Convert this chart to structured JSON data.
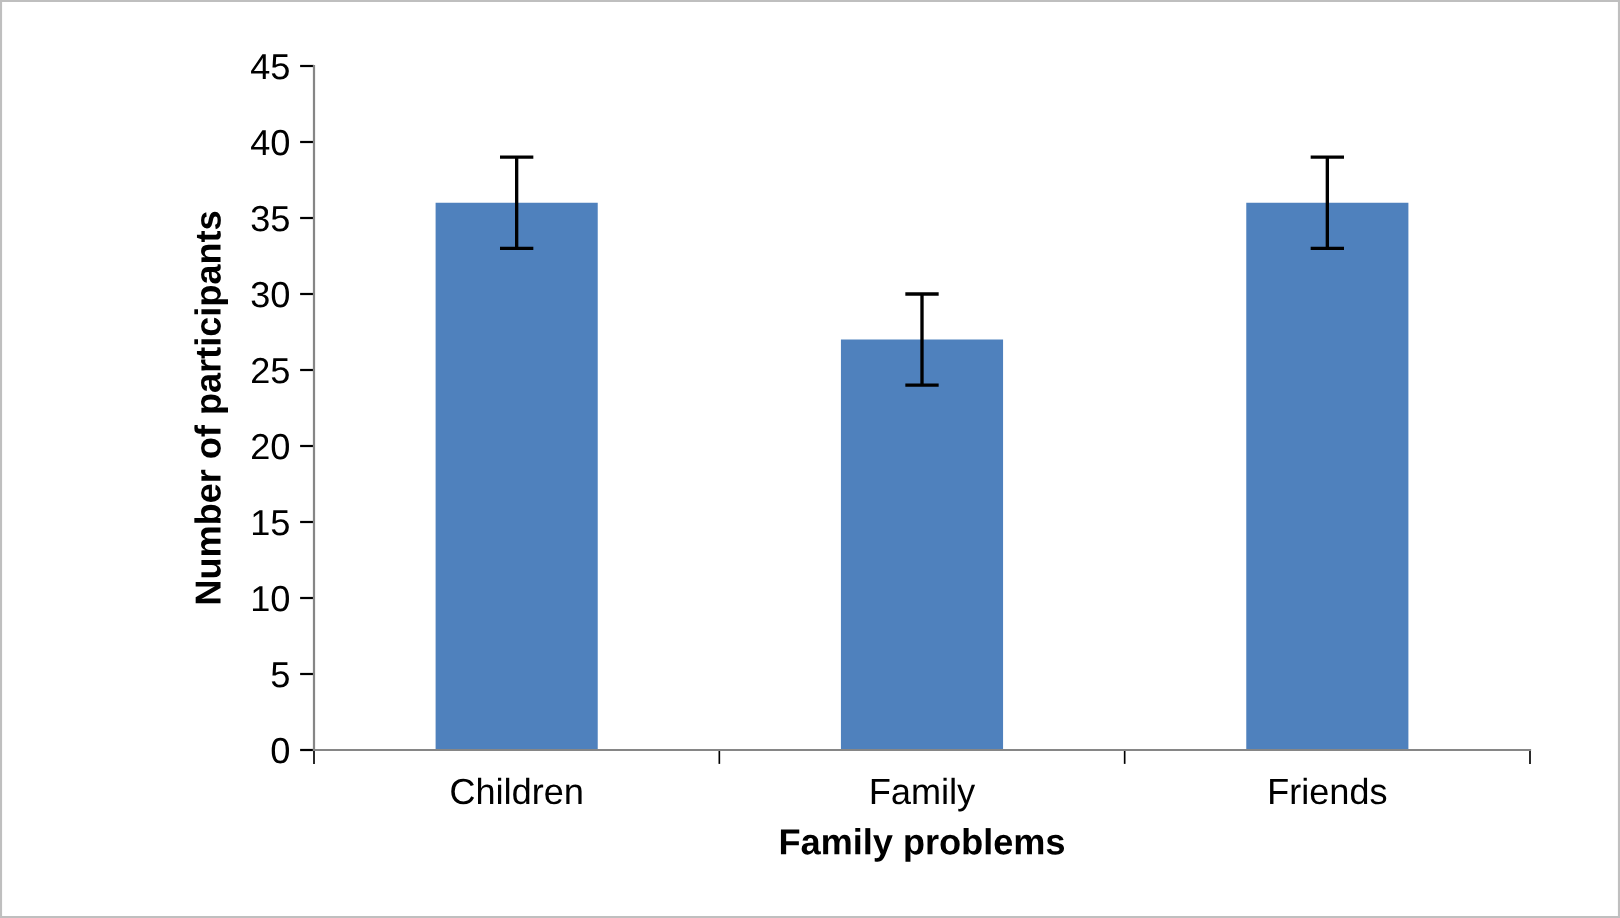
{
  "chart_data": {
    "type": "bar",
    "xlabel": "Family problems",
    "ylabel": "Number of participants",
    "categories": [
      "Children",
      "Family",
      "Friends"
    ],
    "values": [
      36,
      27,
      36
    ],
    "errors": [
      3,
      3,
      3
    ],
    "color": "#4f81bd",
    "ylim": [
      0,
      45
    ],
    "yticks": [
      0,
      5,
      10,
      15,
      20,
      25,
      30,
      35,
      40,
      45
    ],
    "grid": false,
    "legend": false
  }
}
